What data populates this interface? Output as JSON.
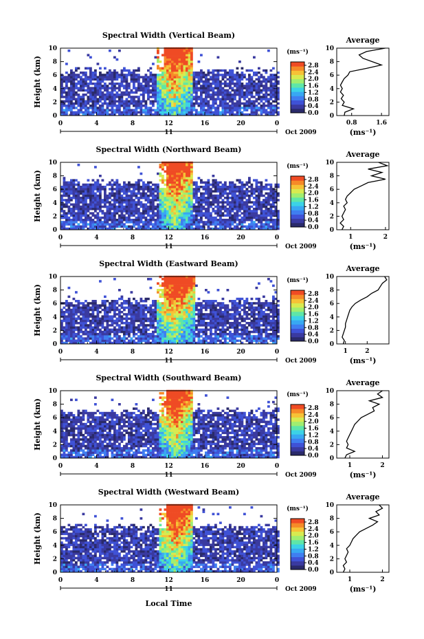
{
  "figure": {
    "xlabel": "Local Time",
    "date_label": "Oct 2009",
    "day_label": "11",
    "units": "(ms⁻¹)",
    "average_title": "Average",
    "height_label": "Height (km)"
  },
  "colors": {
    "palette": [
      "#2a2a6a",
      "#3a3aa0",
      "#3f52d6",
      "#3f7ef0",
      "#38a8f2",
      "#3cd2e6",
      "#5ee6a8",
      "#a0ee70",
      "#d8ea50",
      "#f6c236",
      "#f68a28",
      "#ef4b24"
    ],
    "background": "#ffffff",
    "ink": "#000000"
  },
  "chart_data": [
    {
      "type": "heatmap",
      "title": "Spectral Width (Vertical Beam)",
      "x_ticks": [
        "0",
        "4",
        "8",
        "12",
        "16",
        "20",
        "0"
      ],
      "xlim": [
        0,
        24
      ],
      "y_ticks": [
        "0",
        "2",
        "4",
        "6",
        "8",
        "10"
      ],
      "ylim": [
        0,
        10
      ],
      "colorbar_ticks": [
        "0.0",
        "0.4",
        "0.8",
        "1.2",
        "1.6",
        "2.0",
        "2.4",
        "2.8"
      ],
      "colorbar_range": [
        0,
        3.0
      ],
      "convective_window": [
        10.5,
        14.5
      ],
      "background_top_km": 6.5,
      "profile": {
        "title": "Average",
        "xlabel": "(ms⁻¹)",
        "x_ticks": [
          "0.8",
          "1.6"
        ],
        "xlim": [
          0.4,
          1.8
        ],
        "heights": [
          0,
          0.5,
          1,
          1.5,
          2,
          2.5,
          3,
          3.5,
          4,
          4.5,
          5,
          5.5,
          6,
          6.5,
          7,
          7.5,
          8,
          8.5,
          9,
          9.5,
          10
        ],
        "values": [
          0.6,
          0.62,
          0.85,
          0.55,
          0.6,
          0.52,
          0.58,
          0.5,
          0.55,
          0.5,
          0.55,
          0.6,
          0.7,
          0.75,
          1.2,
          1.6,
          1.35,
          1.1,
          1.0,
          1.2,
          1.7
        ]
      }
    },
    {
      "type": "heatmap",
      "title": "Spectral Width (Northward Beam)",
      "x_ticks": [
        "0",
        "4",
        "8",
        "12",
        "16",
        "20",
        "0"
      ],
      "xlim": [
        0,
        24
      ],
      "y_ticks": [
        "0",
        "2",
        "4",
        "6",
        "8",
        "10"
      ],
      "ylim": [
        0,
        10
      ],
      "colorbar_ticks": [
        "0.0",
        "0.4",
        "0.8",
        "1.2",
        "1.6",
        "2.0",
        "2.4",
        "2.8"
      ],
      "colorbar_range": [
        0,
        3.0
      ],
      "convective_window": [
        10.8,
        14.5
      ],
      "background_top_km": 7.0,
      "profile": {
        "title": "Average",
        "xlabel": "(ms⁻¹)",
        "x_ticks": [
          "1",
          "2"
        ],
        "xlim": [
          0.6,
          2.1
        ],
        "heights": [
          0,
          0.5,
          1,
          1.5,
          2,
          2.5,
          3,
          3.5,
          4,
          4.5,
          5,
          5.5,
          6,
          6.5,
          7,
          7.5,
          8,
          8.5,
          9,
          9.5,
          10
        ],
        "values": [
          0.75,
          0.8,
          0.7,
          0.8,
          0.75,
          0.8,
          0.85,
          0.8,
          0.9,
          0.85,
          0.9,
          1.0,
          1.1,
          1.3,
          1.5,
          2.0,
          1.6,
          1.9,
          1.5,
          2.05,
          1.8
        ]
      }
    },
    {
      "type": "heatmap",
      "title": "Spectral Width (Eastward Beam)",
      "x_ticks": [
        "0",
        "4",
        "8",
        "12",
        "16",
        "20",
        "0"
      ],
      "xlim": [
        0,
        24
      ],
      "y_ticks": [
        "0",
        "2",
        "4",
        "6",
        "8",
        "10"
      ],
      "ylim": [
        0,
        10
      ],
      "colorbar_ticks": [
        "0.0",
        "0.4",
        "0.8",
        "1.2",
        "1.6",
        "2.0",
        "2.4",
        "2.8"
      ],
      "colorbar_range": [
        0,
        3.0
      ],
      "convective_window": [
        10.5,
        14.8
      ],
      "background_top_km": 6.3,
      "profile": {
        "title": "Average",
        "xlabel": "(ms⁻¹)",
        "x_ticks": [
          "1",
          "2"
        ],
        "xlim": [
          0.6,
          3.0
        ],
        "heights": [
          0,
          0.5,
          1,
          1.5,
          2,
          2.5,
          3,
          3.5,
          4,
          4.5,
          5,
          5.5,
          6,
          6.5,
          7,
          7.5,
          8,
          8.5,
          9,
          9.5,
          10
        ],
        "values": [
          0.9,
          0.95,
          0.85,
          0.9,
          0.95,
          1.0,
          1.0,
          1.05,
          1.1,
          1.15,
          1.2,
          1.3,
          1.45,
          1.7,
          2.0,
          2.2,
          2.5,
          2.6,
          2.7,
          2.9,
          2.8
        ]
      }
    },
    {
      "type": "heatmap",
      "title": "Spectral Width (Southward Beam)",
      "x_ticks": [
        "0",
        "4",
        "8",
        "12",
        "16",
        "20",
        "0"
      ],
      "xlim": [
        0,
        24
      ],
      "y_ticks": [
        "0",
        "2",
        "4",
        "6",
        "8",
        "10"
      ],
      "ylim": [
        0,
        10
      ],
      "colorbar_ticks": [
        "0.0",
        "0.4",
        "0.8",
        "1.2",
        "1.6",
        "2.0",
        "2.4",
        "2.8"
      ],
      "colorbar_range": [
        0,
        3.0
      ],
      "convective_window": [
        10.8,
        14.5
      ],
      "background_top_km": 6.8,
      "profile": {
        "title": "Average",
        "xlabel": "(ms⁻¹)",
        "x_ticks": [
          "1",
          "2"
        ],
        "xlim": [
          0.6,
          2.2
        ],
        "heights": [
          0,
          0.5,
          1,
          1.5,
          2,
          2.5,
          3,
          3.5,
          4,
          4.5,
          5,
          5.5,
          6,
          6.5,
          7,
          7.5,
          8,
          8.5,
          9,
          9.5,
          10
        ],
        "values": [
          0.85,
          0.9,
          1.15,
          0.9,
          0.95,
          0.9,
          0.95,
          1.0,
          1.05,
          1.1,
          1.15,
          1.25,
          1.35,
          1.55,
          1.75,
          1.7,
          1.9,
          1.6,
          2.0,
          1.85,
          2.0
        ]
      }
    },
    {
      "type": "heatmap",
      "title": "Spectral Width (Westward Beam)",
      "x_ticks": [
        "0",
        "4",
        "8",
        "12",
        "16",
        "20",
        "0"
      ],
      "xlim": [
        0,
        24
      ],
      "y_ticks": [
        "0",
        "2",
        "4",
        "6",
        "8",
        "10"
      ],
      "ylim": [
        0,
        10
      ],
      "colorbar_ticks": [
        "0.0",
        "0.4",
        "0.8",
        "1.2",
        "1.6",
        "2.0",
        "2.4",
        "2.8"
      ],
      "colorbar_range": [
        0,
        3.0
      ],
      "convective_window": [
        10.8,
        14.5
      ],
      "background_top_km": 6.6,
      "profile": {
        "title": "Average",
        "xlabel": "(ms⁻¹)",
        "x_ticks": [
          "1",
          "2"
        ],
        "xlim": [
          0.6,
          2.2
        ],
        "heights": [
          0,
          0.5,
          1,
          1.5,
          2,
          2.5,
          3,
          3.5,
          4,
          4.5,
          5,
          5.5,
          6,
          6.5,
          7,
          7.5,
          8,
          8.5,
          9,
          9.5,
          10
        ],
        "values": [
          0.8,
          0.85,
          0.8,
          0.9,
          0.85,
          0.9,
          0.95,
          0.9,
          1.0,
          1.05,
          1.1,
          1.2,
          1.3,
          1.5,
          1.7,
          1.85,
          1.6,
          1.9,
          1.8,
          2.0,
          1.9
        ]
      }
    }
  ]
}
